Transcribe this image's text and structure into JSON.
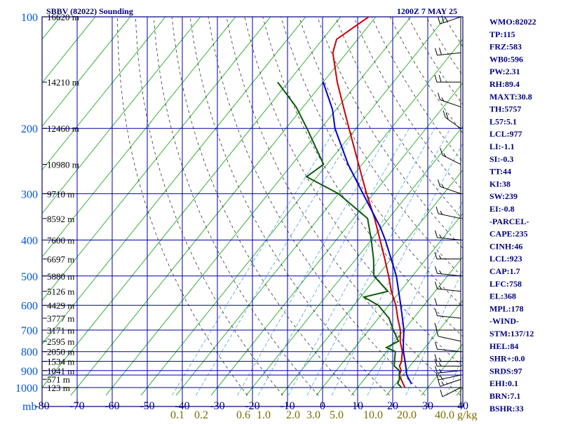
{
  "header": {
    "title": "SBBV (82022) Sounding",
    "time": "1200Z  7 MAY 25"
  },
  "indices": [
    "WMO:82022",
    "TP:115",
    "FRZ:583",
    "WB0:596",
    "PW:2.31",
    "RH:89.4",
    "MAXT:30.8",
    "TH:5757",
    "L57:5.1",
    "LCL:977",
    "LI:-1.1",
    "SI:-0.3",
    "TT:44",
    "KI:38",
    "SW:239",
    "EI:-0.8",
    "-PARCEL-",
    "CAPE:235",
    "CINH:46",
    "LCL:923",
    "CAP:1.7",
    "LFC:758",
    "EL:368",
    "MPL:178",
    "-WIND-",
    "STM:137/12",
    "HEL:84",
    "SHR+:0.0",
    "SRDS:97",
    "EHI:0.1",
    "BRN:7.1",
    "BSHR:33"
  ],
  "chart_data": {
    "type": "line",
    "title": "SBBV (82022) Sounding",
    "subtitle": "1200Z  7 MAY 25",
    "x_axis": {
      "unit_label": "mb",
      "temperature_ticks": [
        -80,
        -70,
        -60,
        -50,
        -40,
        -30,
        -20,
        -10,
        0,
        10,
        20,
        30,
        40
      ],
      "temperature_tick_labels": [
        "-80",
        "-70",
        "-60",
        "-50",
        "-40",
        "-30",
        "-20",
        "-10",
        "0",
        "10",
        "20",
        "30",
        "40"
      ],
      "xlim": [
        -80,
        40
      ]
    },
    "mixing_ratio_axis": {
      "unit_label": "g/kg",
      "ticks": [
        0.1,
        0.2,
        0.6,
        1.0,
        2.0,
        3.0,
        5.0,
        10.0,
        20.0,
        40.0
      ],
      "tick_labels": [
        "0.1",
        "0.2",
        "0.6",
        "1.0",
        "2.0",
        "3.0",
        "5.0",
        "10.0",
        "20.0",
        "40.0"
      ]
    },
    "y_axis": {
      "scale": "log",
      "pressure_ticks": [
        100,
        200,
        300,
        400,
        500,
        600,
        700,
        800,
        900,
        1000
      ],
      "pressure_tick_labels": [
        "100",
        "200",
        "300",
        "400",
        "500",
        "600",
        "700",
        "800",
        "900",
        "1000"
      ],
      "ylim": [
        1000,
        100
      ]
    },
    "height_labels": [
      {
        "p": 100,
        "label": "16620 m"
      },
      {
        "p": 150,
        "label": "14210 m"
      },
      {
        "p": 200,
        "label": "12460 m"
      },
      {
        "p": 250,
        "label": "10980 m"
      },
      {
        "p": 300,
        "label": "9710 m"
      },
      {
        "p": 350,
        "label": "8592 m"
      },
      {
        "p": 400,
        "label": "7600 m"
      },
      {
        "p": 450,
        "label": "6697 m"
      },
      {
        "p": 500,
        "label": "5880 m"
      },
      {
        "p": 550,
        "label": "5126 m"
      },
      {
        "p": 600,
        "label": "4429 m"
      },
      {
        "p": 650,
        "label": "3777 m"
      },
      {
        "p": 700,
        "label": "3171 m"
      },
      {
        "p": 750,
        "label": "2595 m"
      },
      {
        "p": 800,
        "label": "2050 m"
      },
      {
        "p": 850,
        "label": "1534 m"
      },
      {
        "p": 900,
        "label": "1041 m"
      },
      {
        "p": 950,
        "label": "571 m"
      },
      {
        "p": 1000,
        "label": "123 m"
      }
    ],
    "series": [
      {
        "name": "temperature",
        "color": "#cc0000",
        "points": [
          [
            1000,
            23.5
          ],
          [
            975,
            22
          ],
          [
            950,
            20.5
          ],
          [
            925,
            19
          ],
          [
            900,
            18.5
          ],
          [
            875,
            17
          ],
          [
            850,
            16.5
          ],
          [
            825,
            15.5
          ],
          [
            800,
            14.5
          ],
          [
            750,
            11.5
          ],
          [
            700,
            9
          ],
          [
            650,
            5.5
          ],
          [
            600,
            2
          ],
          [
            550,
            -2.5
          ],
          [
            500,
            -6.8
          ],
          [
            450,
            -11.8
          ],
          [
            400,
            -17.5
          ],
          [
            350,
            -24
          ],
          [
            300,
            -32
          ],
          [
            250,
            -41
          ],
          [
            200,
            -52
          ],
          [
            175,
            -58.5
          ],
          [
            150,
            -66
          ],
          [
            125,
            -74
          ],
          [
            115,
            -76
          ],
          [
            100,
            -72
          ]
        ]
      },
      {
        "name": "dewpoint",
        "color": "#0a5a0a",
        "points": [
          [
            1000,
            22.5
          ],
          [
            975,
            20.5
          ],
          [
            950,
            20
          ],
          [
            925,
            19
          ],
          [
            900,
            18
          ],
          [
            875,
            15.5
          ],
          [
            850,
            14.5
          ],
          [
            825,
            13.5
          ],
          [
            800,
            12.5
          ],
          [
            780,
            9
          ],
          [
            750,
            11
          ],
          [
            700,
            7
          ],
          [
            650,
            3
          ],
          [
            600,
            -3
          ],
          [
            570,
            -9
          ],
          [
            550,
            -3.5
          ],
          [
            500,
            -11
          ],
          [
            450,
            -15
          ],
          [
            400,
            -20
          ],
          [
            350,
            -26
          ],
          [
            300,
            -40
          ],
          [
            270,
            -53
          ],
          [
            250,
            -51
          ],
          [
            200,
            -64
          ],
          [
            175,
            -72
          ],
          [
            150,
            -83
          ]
        ]
      },
      {
        "name": "parcel",
        "color": "#0000cc",
        "points": [
          [
            977,
            24.5
          ],
          [
            923,
            21
          ],
          [
            900,
            20
          ],
          [
            850,
            17.5
          ],
          [
            800,
            14.8
          ],
          [
            758,
            12.8
          ],
          [
            700,
            10
          ],
          [
            600,
            3.4
          ],
          [
            500,
            -4.6
          ],
          [
            400,
            -16
          ],
          [
            368,
            -20.6
          ],
          [
            300,
            -33
          ],
          [
            250,
            -44
          ],
          [
            200,
            -56
          ],
          [
            178,
            -61
          ],
          [
            150,
            -70
          ]
        ]
      }
    ],
    "wind_barbs": [
      {
        "p": 1000,
        "dir": 130,
        "spd": 10
      },
      {
        "p": 950,
        "dir": 120,
        "spd": 15
      },
      {
        "p": 925,
        "dir": 110,
        "spd": 15
      },
      {
        "p": 900,
        "dir": 100,
        "spd": 15
      },
      {
        "p": 875,
        "dir": 90,
        "spd": 15
      },
      {
        "p": 850,
        "dir": 90,
        "spd": 15
      },
      {
        "p": 800,
        "dir": 80,
        "spd": 10
      },
      {
        "p": 750,
        "dir": 70,
        "spd": 10
      },
      {
        "p": 700,
        "dir": 90,
        "spd": 10
      },
      {
        "p": 650,
        "dir": 80,
        "spd": 10
      },
      {
        "p": 600,
        "dir": 90,
        "spd": 10
      },
      {
        "p": 550,
        "dir": 80,
        "spd": 15
      },
      {
        "p": 500,
        "dir": 80,
        "spd": 15
      },
      {
        "p": 450,
        "dir": 90,
        "spd": 15
      },
      {
        "p": 400,
        "dir": 80,
        "spd": 15
      },
      {
        "p": 350,
        "dir": 70,
        "spd": 15
      },
      {
        "p": 300,
        "dir": 60,
        "spd": 15
      },
      {
        "p": 250,
        "dir": 50,
        "spd": 15
      },
      {
        "p": 200,
        "dir": 40,
        "spd": 20
      },
      {
        "p": 175,
        "dir": 60,
        "spd": 15
      },
      {
        "p": 150,
        "dir": 90,
        "spd": 20
      },
      {
        "p": 125,
        "dir": 100,
        "spd": 20
      },
      {
        "p": 100,
        "dir": 120,
        "spd": 25
      }
    ],
    "grid": true,
    "legend": "none"
  }
}
